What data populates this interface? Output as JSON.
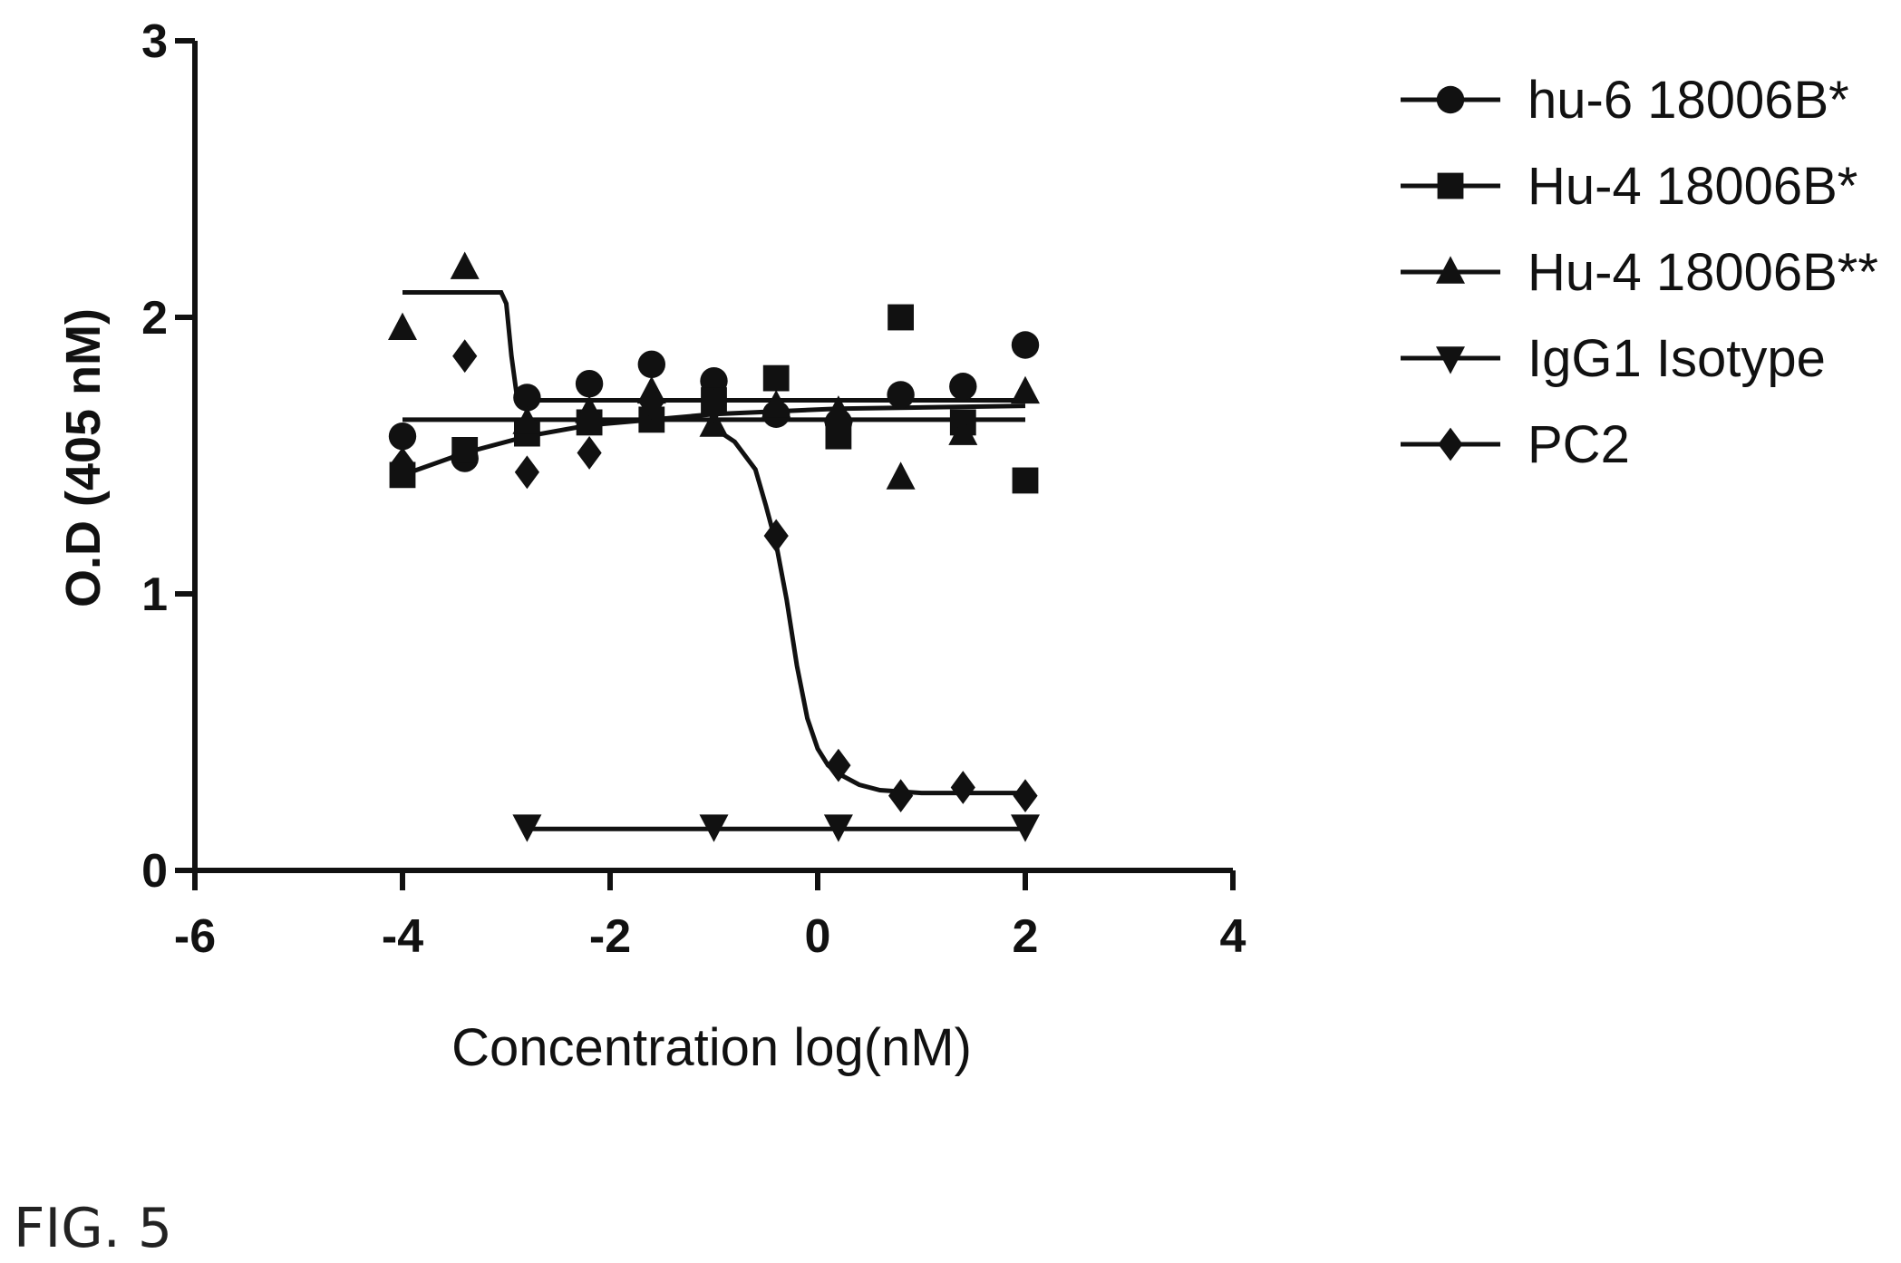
{
  "figure_label": "FIG. 5",
  "chart_data": {
    "type": "scatter",
    "title": "",
    "xlabel": "Concentration log(nM)",
    "ylabel": "O.D (405 nM)",
    "xlim": [
      -6,
      4
    ],
    "ylim": [
      0,
      3
    ],
    "x_ticks": [
      "-6",
      "-4",
      "-2",
      "0",
      "2",
      "4"
    ],
    "y_ticks": [
      "0",
      "1",
      "2",
      "3"
    ],
    "legend_position": "right",
    "series": [
      {
        "name": "hu-6 18006B*",
        "marker": "circle",
        "points": [
          [
            -4,
            1.57
          ],
          [
            -3.4,
            1.49
          ],
          [
            -2.8,
            1.71
          ],
          [
            -2.2,
            1.76
          ],
          [
            -1.6,
            1.83
          ],
          [
            -1.0,
            1.77
          ],
          [
            -0.4,
            1.65
          ],
          [
            0.2,
            1.62
          ],
          [
            0.8,
            1.72
          ],
          [
            1.4,
            1.75
          ],
          [
            2.0,
            1.9
          ]
        ],
        "fit": [
          [
            -4,
            1.63
          ],
          [
            2,
            1.63
          ]
        ]
      },
      {
        "name": "Hu-4 18006B*",
        "marker": "square",
        "points": [
          [
            -4,
            1.43
          ],
          [
            -3.4,
            1.52
          ],
          [
            -2.8,
            1.58
          ],
          [
            -2.2,
            1.62
          ],
          [
            -1.6,
            1.63
          ],
          [
            -1.0,
            1.7
          ],
          [
            -0.4,
            1.78
          ],
          [
            0.2,
            1.57
          ],
          [
            0.8,
            2.0
          ],
          [
            1.4,
            1.62
          ],
          [
            2.0,
            1.41
          ]
        ],
        "fit": [
          [
            -4,
            1.43
          ],
          [
            -3.4,
            1.51
          ],
          [
            -2.8,
            1.57
          ],
          [
            -2.2,
            1.61
          ],
          [
            -1.6,
            1.63
          ],
          [
            -1.0,
            1.65
          ],
          [
            -0.4,
            1.66
          ],
          [
            0.2,
            1.67
          ],
          [
            2.0,
            1.68
          ]
        ]
      },
      {
        "name": "Hu-4 18006B**",
        "marker": "triangle-up",
        "points": [
          [
            -4,
            1.96
          ],
          [
            -3.4,
            2.18
          ],
          [
            -2.8,
            1.62
          ],
          [
            -2.2,
            1.66
          ],
          [
            -1.6,
            1.73
          ],
          [
            -1.0,
            1.61
          ],
          [
            -0.4,
            1.68
          ],
          [
            0.2,
            1.66
          ],
          [
            0.8,
            1.42
          ],
          [
            1.4,
            1.58
          ],
          [
            2.0,
            1.73
          ]
        ],
        "fit": [
          [
            -4,
            2.09
          ],
          [
            -3.05,
            2.09
          ],
          [
            -3.0,
            2.05
          ],
          [
            -2.95,
            1.86
          ],
          [
            -2.9,
            1.72
          ],
          [
            -2.85,
            1.7
          ],
          [
            2.0,
            1.7
          ]
        ]
      },
      {
        "name": "IgG1 Isotype",
        "marker": "triangle-down",
        "points": [
          [
            -2.8,
            0.16
          ],
          [
            -1.0,
            0.16
          ],
          [
            0.2,
            0.16
          ],
          [
            2.0,
            0.16
          ]
        ],
        "fit": [
          [
            -2.8,
            0.15
          ],
          [
            2.0,
            0.15
          ]
        ]
      },
      {
        "name": "PC2",
        "marker": "diamond",
        "points": [
          [
            -4,
            1.47
          ],
          [
            -3.4,
            1.86
          ],
          [
            -2.8,
            1.44
          ],
          [
            -2.2,
            1.51
          ],
          [
            -1.6,
            1.69
          ],
          [
            -1.0,
            1.68
          ],
          [
            -0.4,
            1.21
          ],
          [
            0.2,
            0.38
          ],
          [
            0.8,
            0.27
          ],
          [
            1.4,
            0.3
          ],
          [
            2.0,
            0.27
          ]
        ],
        "fit": [
          [
            -1.0,
            1.6
          ],
          [
            -0.8,
            1.55
          ],
          [
            -0.6,
            1.45
          ],
          [
            -0.5,
            1.32
          ],
          [
            -0.4,
            1.18
          ],
          [
            -0.3,
            0.98
          ],
          [
            -0.2,
            0.74
          ],
          [
            -0.1,
            0.55
          ],
          [
            0.0,
            0.44
          ],
          [
            0.1,
            0.38
          ],
          [
            0.2,
            0.35
          ],
          [
            0.4,
            0.31
          ],
          [
            0.6,
            0.29
          ],
          [
            1.0,
            0.28
          ],
          [
            2.0,
            0.28
          ]
        ]
      }
    ]
  }
}
